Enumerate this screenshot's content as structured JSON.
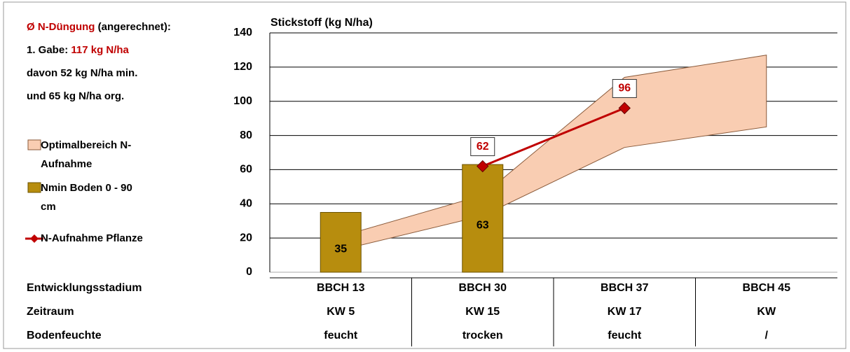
{
  "chart_data": {
    "type": "combo",
    "title": "Stickstoff (kg N/ha)",
    "fertilization": {
      "label": "Ø N-Düngung",
      "label_suffix": "(angerechnet):",
      "dose_label": "1. Gabe:",
      "dose": "117 kg N/ha",
      "mineral": "davon 52 kg N/ha min.",
      "organic": "und 65 kg N/ha org."
    },
    "categories": [
      "BBCH 13",
      "BBCH 30",
      "BBCH 37",
      "BBCH 45"
    ],
    "series": [
      {
        "name": "Optimalbereich N-Aufnahme",
        "type": "range",
        "color": "#f9cdb2",
        "lower": [
          13,
          33,
          73,
          85
        ],
        "upper": [
          21,
          45,
          114,
          127
        ]
      },
      {
        "name": "Nmin Boden 0 - 90 cm",
        "type": "bar",
        "color": "#b78d0e",
        "values": [
          35,
          63,
          null,
          null
        ]
      },
      {
        "name": "N-Aufnahme Pflanze",
        "type": "line",
        "color": "#c00000",
        "values": [
          null,
          62,
          96,
          null
        ]
      }
    ],
    "ylim": [
      0,
      140
    ],
    "yticks": [
      0,
      20,
      40,
      60,
      80,
      100,
      120,
      140
    ],
    "grid": true,
    "table": {
      "rows": [
        {
          "label": "Entwicklungsstadium"
        },
        {
          "label": "Zeitraum",
          "values": [
            "KW 5",
            "KW 15",
            "KW 17",
            "KW"
          ]
        },
        {
          "label": "Bodenfeuchte",
          "values": [
            "feucht",
            "trocken",
            "feucht",
            "/"
          ]
        }
      ]
    }
  }
}
